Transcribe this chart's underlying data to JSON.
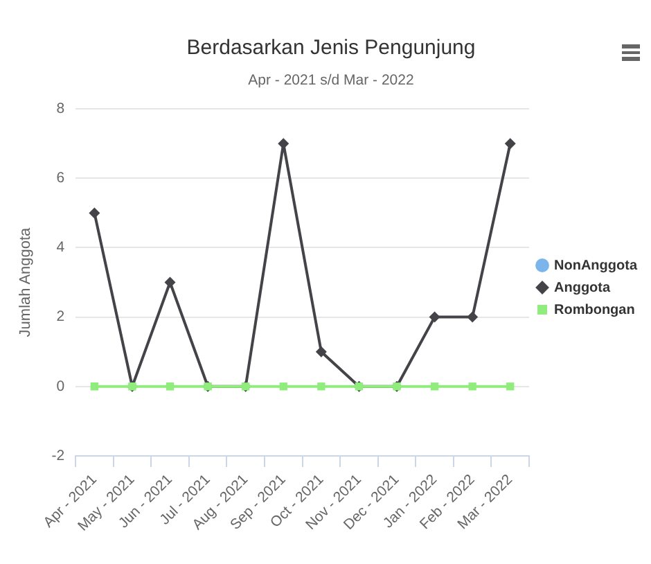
{
  "chart_data": {
    "type": "line",
    "title": "Berdasarkan Jenis Pengunjung",
    "subtitle": "Apr - 2021 s/d Mar - 2022",
    "ylabel": "Jumlah Anggota",
    "categories": [
      "Apr - 2021",
      "May - 2021",
      "Jun - 2021",
      "Jul - 2021",
      "Aug - 2021",
      "Sep - 2021",
      "Oct - 2021",
      "Nov - 2021",
      "Dec - 2021",
      "Jan - 2022",
      "Feb - 2022",
      "Mar - 2022"
    ],
    "series": [
      {
        "name": "NonAnggota",
        "color": "#7cb5ec",
        "marker": "circle",
        "values": [
          null,
          null,
          null,
          null,
          null,
          null,
          null,
          null,
          null,
          null,
          null,
          null
        ]
      },
      {
        "name": "Anggota",
        "color": "#434348",
        "marker": "diamond",
        "values": [
          5,
          0,
          3,
          0,
          0,
          7,
          1,
          0,
          0,
          2,
          2,
          7
        ]
      },
      {
        "name": "Rombongan",
        "color": "#90ed7d",
        "marker": "square",
        "values": [
          0,
          0,
          0,
          0,
          0,
          0,
          0,
          0,
          0,
          0,
          0,
          0
        ]
      }
    ],
    "ylim": [
      -2,
      8
    ],
    "yticks": [
      -2,
      0,
      2,
      4,
      6,
      8
    ],
    "grid": "y",
    "legend": "right",
    "line_style": "solid"
  }
}
